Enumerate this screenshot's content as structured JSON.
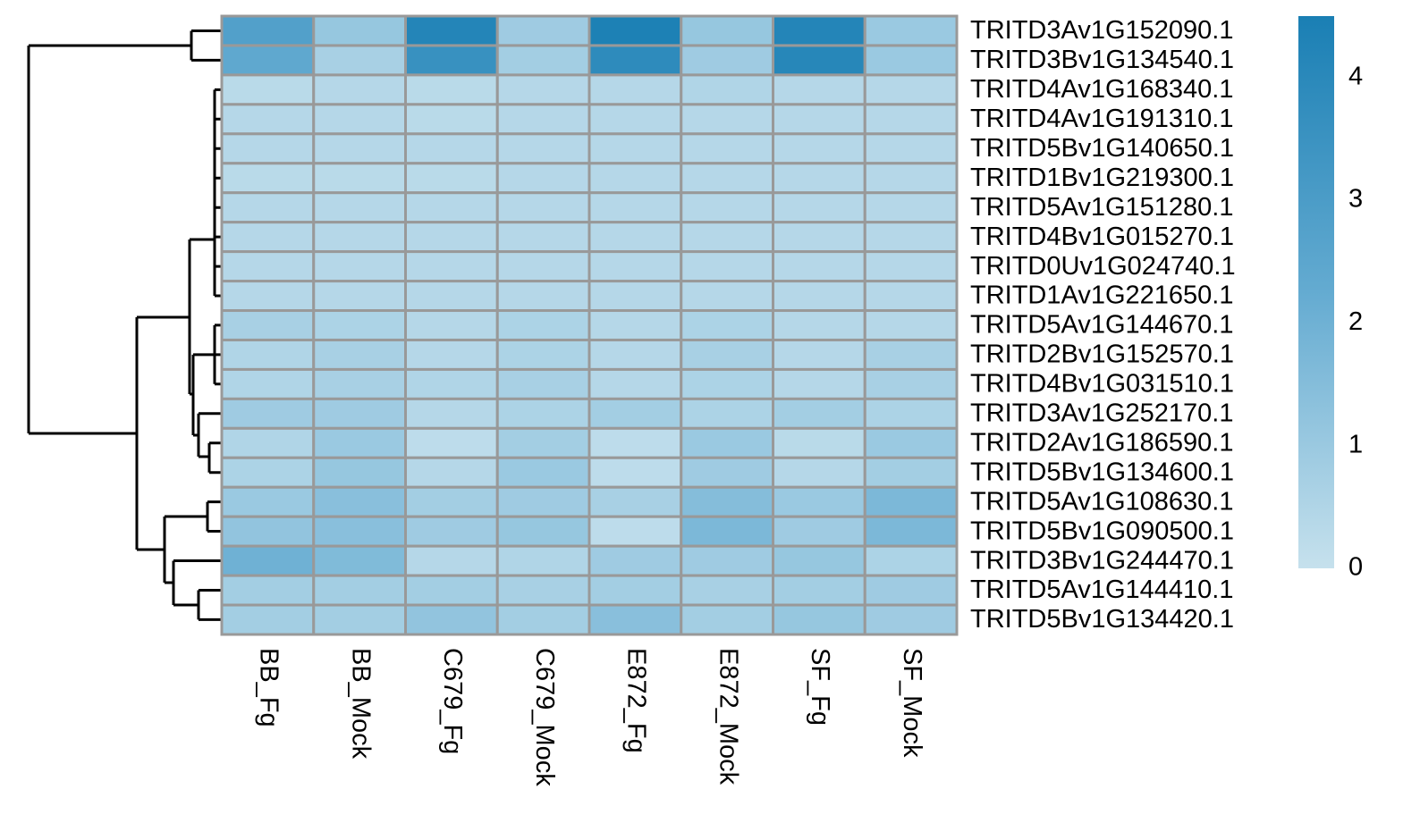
{
  "chart_data": {
    "type": "heatmap",
    "columns": [
      "BB_Fg",
      "BB_Mock",
      "C679_Fg",
      "C679_Mock",
      "E872_Fg",
      "E872_Mock",
      "SF_Fg",
      "SF_Mock"
    ],
    "rows": [
      "TRITD3Av1G152090.1",
      "TRITD3Bv1G134540.1",
      "TRITD4Av1G168340.1",
      "TRITD4Av1G191310.1",
      "TRITD5Bv1G140650.1",
      "TRITD1Bv1G219300.1",
      "TRITD5Av1G151280.1",
      "TRITD4Bv1G015270.1",
      "TRITD0Uv1G024740.1",
      "TRITD1Av1G221650.1",
      "TRITD5Av1G144670.1",
      "TRITD2Bv1G152570.1",
      "TRITD4Bv1G031510.1",
      "TRITD3Av1G252170.1",
      "TRITD2Av1G186590.1",
      "TRITD5Bv1G134600.1",
      "TRITD5Av1G108630.1",
      "TRITD5Bv1G090500.1",
      "TRITD3Bv1G244470.1",
      "TRITD5Av1G144410.1",
      "TRITD5Bv1G134420.1"
    ],
    "values": [
      [
        2.8,
        1.1,
        4.2,
        0.9,
        4.4,
        1.1,
        4.2,
        1.0
      ],
      [
        2.4,
        0.7,
        3.6,
        0.8,
        3.9,
        0.9,
        4.1,
        1.0
      ],
      [
        0.3,
        0.4,
        0.3,
        0.4,
        0.4,
        0.5,
        0.4,
        0.4
      ],
      [
        0.4,
        0.4,
        0.3,
        0.4,
        0.4,
        0.4,
        0.4,
        0.4
      ],
      [
        0.4,
        0.4,
        0.4,
        0.4,
        0.4,
        0.4,
        0.4,
        0.4
      ],
      [
        0.3,
        0.3,
        0.3,
        0.4,
        0.4,
        0.4,
        0.4,
        0.4
      ],
      [
        0.4,
        0.4,
        0.4,
        0.4,
        0.4,
        0.4,
        0.4,
        0.4
      ],
      [
        0.4,
        0.4,
        0.4,
        0.4,
        0.4,
        0.4,
        0.4,
        0.4
      ],
      [
        0.4,
        0.4,
        0.4,
        0.4,
        0.4,
        0.4,
        0.4,
        0.4
      ],
      [
        0.4,
        0.4,
        0.4,
        0.4,
        0.4,
        0.4,
        0.4,
        0.4
      ],
      [
        0.7,
        0.6,
        0.4,
        0.6,
        0.4,
        0.6,
        0.4,
        0.4
      ],
      [
        0.5,
        0.7,
        0.4,
        0.6,
        0.4,
        0.7,
        0.4,
        0.7
      ],
      [
        0.5,
        0.7,
        0.5,
        0.7,
        0.4,
        0.6,
        0.4,
        0.7
      ],
      [
        0.9,
        0.9,
        0.4,
        0.6,
        0.8,
        0.6,
        0.8,
        0.6
      ],
      [
        0.5,
        1.0,
        0.2,
        0.8,
        0.2,
        1.0,
        0.3,
        1.0
      ],
      [
        0.6,
        1.1,
        0.4,
        1.0,
        0.2,
        0.9,
        0.4,
        0.8
      ],
      [
        1.0,
        1.4,
        0.8,
        0.9,
        0.7,
        1.5,
        1.0,
        1.7
      ],
      [
        1.2,
        1.4,
        0.9,
        1.1,
        0.2,
        1.7,
        0.9,
        1.7
      ],
      [
        2.0,
        1.6,
        0.4,
        0.5,
        0.9,
        0.9,
        1.1,
        0.6
      ],
      [
        0.8,
        0.8,
        0.8,
        0.7,
        0.8,
        0.7,
        0.8,
        0.9
      ],
      [
        0.8,
        0.8,
        1.2,
        0.8,
        1.4,
        0.8,
        1.1,
        0.9
      ]
    ],
    "clim": [
      0,
      4.5
    ],
    "cticks": [
      0,
      1,
      2,
      3,
      4
    ],
    "colors": [
      "#c6e1ed",
      "#64abd1",
      "#1a7fb4"
    ],
    "cell_border": "#999999"
  }
}
